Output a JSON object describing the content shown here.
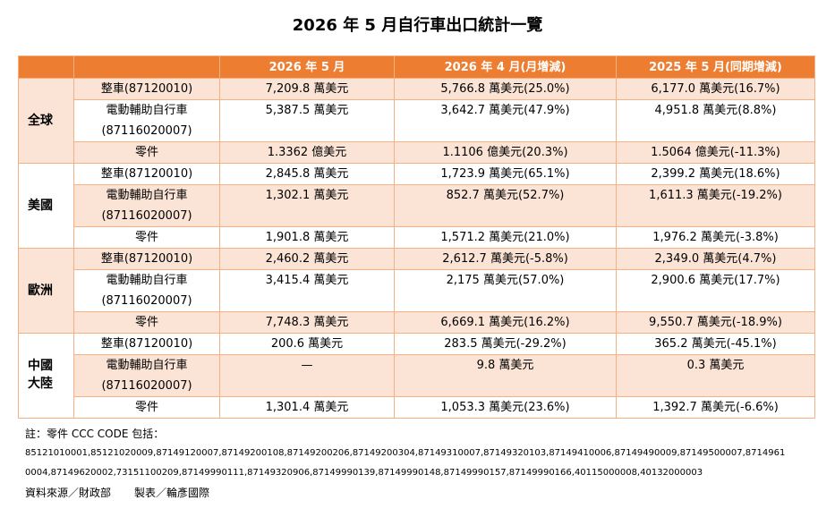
{
  "header": {
    "title": "2026 年 5 月自行車出口統計一覽"
  },
  "table": {
    "columns": [
      "2026 年 5 月",
      "2026 年 4 月(月增減)",
      "2025 年 5 月(同期增減)"
    ],
    "groups": [
      {
        "region": "全球",
        "rows": [
          {
            "item": [
              "整車(87120010)"
            ],
            "values": [
              "7,209.8 萬美元",
              "5,766.8 萬美元(25.0%)",
              "6,177.0 萬美元(16.7%)"
            ]
          },
          {
            "item": [
              "電動輔助自行車",
              "(87116020007)"
            ],
            "values": [
              "5,387.5 萬美元",
              "3,642.7 萬美元(47.9%)",
              "4,951.8 萬美元(8.8%)"
            ]
          },
          {
            "item": [
              "零件"
            ],
            "values": [
              "1.3362 億美元",
              "1.1106 億美元(20.3%)",
              "1.5064 億美元(-11.3%)"
            ]
          }
        ]
      },
      {
        "region": "美國",
        "rows": [
          {
            "item": [
              "整車(87120010)"
            ],
            "values": [
              "2,845.8 萬美元",
              "1,723.9 萬美元(65.1%)",
              "2,399.2 萬美元(18.6%)"
            ]
          },
          {
            "item": [
              "電動輔助自行車",
              "(87116020007)"
            ],
            "values": [
              "1,302.1 萬美元",
              "852.7 萬美元(52.7%)",
              "1,611.3 萬美元(-19.2%)"
            ]
          },
          {
            "item": [
              "零件"
            ],
            "values": [
              "1,901.8 萬美元",
              "1,571.2 萬美元(21.0%)",
              "1,976.2 萬美元(-3.8%)"
            ]
          }
        ]
      },
      {
        "region": "歐洲",
        "rows": [
          {
            "item": [
              "整車(87120010)"
            ],
            "values": [
              "2,460.2 萬美元",
              "2,612.7 萬美元(-5.8%)",
              "2,349.0 萬美元(4.7%)"
            ]
          },
          {
            "item": [
              "電動輔助自行車",
              "(87116020007)"
            ],
            "values": [
              "3,415.4 萬美元",
              "2,175 萬美元(57.0%)",
              "2,900.6 萬美元(17.7%)"
            ]
          },
          {
            "item": [
              "零件"
            ],
            "values": [
              "7,748.3 萬美元",
              "6,669.1 萬美元(16.2%)",
              "9,550.7 萬美元(-18.9%)"
            ]
          }
        ]
      },
      {
        "region": "中國大陸",
        "rows": [
          {
            "item": [
              "整車(87120010)"
            ],
            "values": [
              "200.6 萬美元",
              "283.5 萬美元(-29.2%)",
              "365.2 萬美元(-45.1%)"
            ]
          },
          {
            "item": [
              "電動輔助自行車",
              "(87116020007)"
            ],
            "values": [
              "—",
              "9.8 萬美元",
              "0.3 萬美元"
            ]
          },
          {
            "item": [
              "零件"
            ],
            "values": [
              "1,301.4 萬美元",
              "1,053.3 萬美元(23.6%)",
              "1,392.7 萬美元(-6.6%)"
            ]
          }
        ]
      }
    ]
  },
  "notes": {
    "label": "註：零件 CCC CODE 包括：",
    "codes": [
      "85121010001,85121020009,87149120007,87149200108,87149200206,87149200304,87149310007,87149320103,87149410006,87149490009,87149500007,8714961",
      "0004,87149620002,73151100209,87149990111,87149320906,87149990139,87149990148,87149990157,87149990166,40115000008,40132000003"
    ],
    "source": [
      "資料來源／財政部",
      "製表／輪彥國際"
    ]
  }
}
